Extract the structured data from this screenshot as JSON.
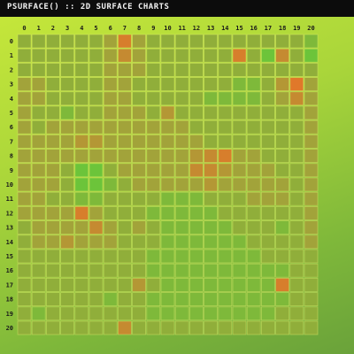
{
  "title": "PSURFACE() :: 2D SURFACE CHARTS",
  "colors": {
    "background_top": "#c7e83a",
    "background_bottom": "#6aa23a",
    "title_bar": "#0c0c0c",
    "title_text": "#f2f2f2",
    "low": "#6cc43a",
    "mid": "#a2a33a",
    "high": "#e0782a",
    "cell_border": "#d9e96a"
  },
  "chart_data": {
    "type": "heatmap",
    "title": "PSURFACE() :: 2D SURFACE CHARTS",
    "x_ticks": [
      "0",
      "1",
      "2",
      "3",
      "4",
      "5",
      "6",
      "7",
      "8",
      "9",
      "10",
      "11",
      "12",
      "13",
      "14",
      "15",
      "16",
      "17",
      "18",
      "19",
      "20"
    ],
    "y_ticks": [
      "0",
      "1",
      "2",
      "3",
      "4",
      "5",
      "6",
      "7",
      "8",
      "9",
      "10",
      "11",
      "12",
      "13",
      "14",
      "15",
      "16",
      "17",
      "18",
      "19",
      "20"
    ],
    "value_range": [
      0,
      10
    ],
    "grid": true,
    "values": [
      [
        4,
        4,
        4,
        4,
        4,
        4,
        5,
        8,
        5,
        4,
        4,
        4,
        4,
        4,
        4,
        4,
        4,
        4,
        4,
        4,
        3
      ],
      [
        4,
        4,
        4,
        4,
        4,
        4,
        5,
        7,
        5,
        4,
        4,
        4,
        4,
        4,
        4,
        8,
        4,
        2,
        7,
        4,
        2
      ],
      [
        4,
        4,
        4,
        4,
        4,
        4,
        5,
        5,
        5,
        4,
        4,
        4,
        4,
        4,
        4,
        4,
        4,
        4,
        4,
        4,
        4
      ],
      [
        5,
        5,
        4,
        4,
        4,
        4,
        5,
        5,
        4,
        4,
        4,
        4,
        4,
        4,
        4,
        3,
        3,
        4,
        6,
        9,
        5
      ],
      [
        5,
        5,
        4,
        4,
        4,
        4,
        5,
        5,
        4,
        4,
        4,
        4,
        4,
        3,
        3,
        3,
        3,
        4,
        5,
        7,
        5
      ],
      [
        5,
        4,
        4,
        3,
        4,
        4,
        5,
        5,
        5,
        4,
        6,
        4,
        4,
        4,
        4,
        4,
        4,
        4,
        4,
        4,
        5
      ],
      [
        5,
        4,
        5,
        5,
        5,
        5,
        5,
        5,
        5,
        5,
        5,
        5,
        4,
        4,
        4,
        4,
        4,
        4,
        4,
        4,
        5
      ],
      [
        5,
        5,
        5,
        5,
        6,
        6,
        5,
        5,
        5,
        5,
        5,
        5,
        5,
        4,
        4,
        4,
        4,
        4,
        4,
        4,
        5
      ],
      [
        5,
        5,
        5,
        5,
        5,
        5,
        5,
        5,
        5,
        5,
        5,
        5,
        6,
        7,
        8,
        5,
        5,
        4,
        4,
        4,
        5
      ],
      [
        5,
        5,
        5,
        4,
        2,
        2,
        4,
        5,
        5,
        5,
        5,
        5,
        7,
        7,
        6,
        5,
        5,
        5,
        4,
        4,
        5
      ],
      [
        5,
        5,
        5,
        4,
        2,
        2,
        3,
        4,
        5,
        5,
        5,
        5,
        5,
        6,
        5,
        5,
        5,
        5,
        5,
        4,
        5
      ],
      [
        5,
        5,
        4,
        4,
        3,
        3,
        4,
        4,
        4,
        4,
        3,
        3,
        3,
        4,
        4,
        4,
        5,
        5,
        5,
        4,
        5
      ],
      [
        5,
        5,
        5,
        5,
        8,
        5,
        4,
        4,
        4,
        3,
        3,
        3,
        3,
        3,
        4,
        4,
        4,
        4,
        4,
        4,
        5
      ],
      [
        4,
        5,
        5,
        5,
        5,
        7,
        5,
        4,
        5,
        4,
        3,
        3,
        3,
        3,
        3,
        4,
        4,
        4,
        3,
        4,
        5
      ],
      [
        4,
        5,
        5,
        6,
        5,
        5,
        5,
        4,
        4,
        4,
        3,
        3,
        3,
        3,
        3,
        3,
        4,
        4,
        4,
        4,
        5
      ],
      [
        4,
        4,
        4,
        4,
        4,
        4,
        4,
        4,
        4,
        3,
        3,
        3,
        3,
        3,
        3,
        3,
        3,
        4,
        4,
        4,
        4
      ],
      [
        4,
        4,
        4,
        4,
        4,
        4,
        4,
        4,
        4,
        3,
        3,
        3,
        3,
        3,
        3,
        3,
        3,
        3,
        3,
        4,
        4
      ],
      [
        4,
        4,
        4,
        4,
        4,
        4,
        4,
        4,
        6,
        4,
        3,
        3,
        3,
        3,
        3,
        3,
        3,
        3,
        8,
        4,
        4
      ],
      [
        4,
        4,
        4,
        4,
        4,
        4,
        3,
        4,
        4,
        3,
        3,
        3,
        3,
        3,
        3,
        3,
        3,
        3,
        3,
        4,
        4
      ],
      [
        4,
        3,
        4,
        4,
        4,
        4,
        4,
        4,
        4,
        3,
        3,
        3,
        3,
        3,
        3,
        3,
        3,
        3,
        4,
        4,
        4
      ],
      [
        4,
        4,
        4,
        4,
        4,
        4,
        4,
        7,
        4,
        4,
        4,
        4,
        4,
        4,
        4,
        4,
        4,
        4,
        4,
        4,
        4
      ]
    ]
  }
}
